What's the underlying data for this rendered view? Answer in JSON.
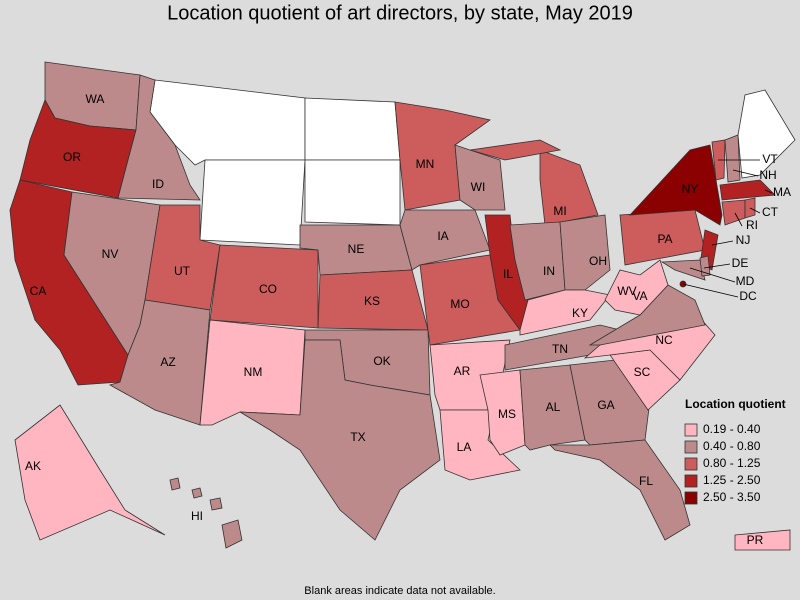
{
  "title": "Location quotient of art directors, by state, May 2019",
  "legend": {
    "title": "Location quotient",
    "items": [
      {
        "label": "0.19 - 0.40",
        "color": "#ffb6c1"
      },
      {
        "label": "0.40 - 0.80",
        "color": "#bc8a8a"
      },
      {
        "label": "0.80 - 1.25",
        "color": "#cd5c5c"
      },
      {
        "label": "1.25 - 2.50",
        "color": "#b22222"
      },
      {
        "label": "2.50 - 3.50",
        "color": "#8b0000"
      }
    ]
  },
  "states": [
    {
      "label": "WA",
      "color": "#bc8a8a"
    },
    {
      "label": "OR",
      "color": "#b22222"
    },
    {
      "label": "CA",
      "color": "#b22222"
    },
    {
      "label": "ID",
      "color": "#bc8a8a"
    },
    {
      "label": "NV",
      "color": "#bc8a8a"
    },
    {
      "label": "UT",
      "color": "#cd5c5c"
    },
    {
      "label": "AZ",
      "color": "#bc8a8a"
    },
    {
      "label": "CO",
      "color": "#cd5c5c"
    },
    {
      "label": "NM",
      "color": "#ffb6c1"
    },
    {
      "label": "NE",
      "color": "#bc8a8a"
    },
    {
      "label": "KS",
      "color": "#cd5c5c"
    },
    {
      "label": "OK",
      "color": "#bc8a8a"
    },
    {
      "label": "TX",
      "color": "#bc8a8a"
    },
    {
      "label": "MN",
      "color": "#cd5c5c"
    },
    {
      "label": "IA",
      "color": "#bc8a8a"
    },
    {
      "label": "MO",
      "color": "#cd5c5c"
    },
    {
      "label": "AR",
      "color": "#ffb6c1"
    },
    {
      "label": "LA",
      "color": "#ffb6c1"
    },
    {
      "label": "WI",
      "color": "#bc8a8a"
    },
    {
      "label": "IL",
      "color": "#b22222"
    },
    {
      "label": "MI",
      "color": "#cd5c5c"
    },
    {
      "label": "IN",
      "color": "#bc8a8a"
    },
    {
      "label": "OH",
      "color": "#bc8a8a"
    },
    {
      "label": "KY",
      "color": "#ffb6c1"
    },
    {
      "label": "TN",
      "color": "#bc8a8a"
    },
    {
      "label": "MS",
      "color": "#ffb6c1"
    },
    {
      "label": "AL",
      "color": "#bc8a8a"
    },
    {
      "label": "GA",
      "color": "#bc8a8a"
    },
    {
      "label": "FL",
      "color": "#bc8a8a"
    },
    {
      "label": "SC",
      "color": "#ffb6c1"
    },
    {
      "label": "NC",
      "color": "#ffb6c1"
    },
    {
      "label": "VA",
      "color": "#bc8a8a"
    },
    {
      "label": "WV",
      "color": "#ffb6c1"
    },
    {
      "label": "PA",
      "color": "#cd5c5c"
    },
    {
      "label": "NY",
      "color": "#8b0000"
    },
    {
      "label": "NJ",
      "color": "#b22222"
    },
    {
      "label": "MD",
      "color": "#bc8a8a"
    },
    {
      "label": "DE",
      "color": "#bc8a8a"
    },
    {
      "label": "DC",
      "color": "#8b0000"
    },
    {
      "label": "VT",
      "color": "#cd5c5c"
    },
    {
      "label": "NH",
      "color": "#bc8a8a"
    },
    {
      "label": "MA",
      "color": "#b22222"
    },
    {
      "label": "CT",
      "color": "#cd5c5c"
    },
    {
      "label": "RI",
      "color": "#cd5c5c"
    },
    {
      "label": "AK",
      "color": "#ffb6c1"
    },
    {
      "label": "HI",
      "color": "#bc8a8a"
    },
    {
      "label": "PR",
      "color": "#ffb6c1"
    }
  ],
  "note": "Blank areas indicate data not available."
}
